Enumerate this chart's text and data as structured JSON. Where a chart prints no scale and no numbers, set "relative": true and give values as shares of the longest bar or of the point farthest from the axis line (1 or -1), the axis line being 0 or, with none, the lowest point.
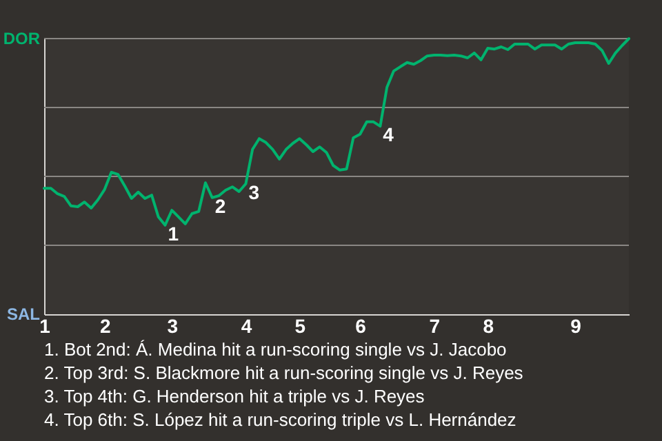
{
  "chart_data": {
    "type": "line",
    "relative": true,
    "categories": [
      "1",
      null,
      null,
      null,
      null,
      null,
      null,
      null,
      null,
      "2",
      null,
      null,
      null,
      null,
      null,
      null,
      null,
      null,
      null,
      "3",
      null,
      null,
      null,
      null,
      null,
      null,
      null,
      null,
      null,
      null,
      "4",
      null,
      null,
      null,
      null,
      null,
      null,
      null,
      "5",
      null,
      null,
      null,
      null,
      null,
      null,
      null,
      null,
      "6",
      null,
      null,
      null,
      null,
      null,
      null,
      null,
      null,
      null,
      null,
      "7",
      null,
      null,
      null,
      null,
      null,
      null,
      null,
      "8",
      null,
      null,
      null,
      null,
      null,
      null,
      null,
      null,
      null,
      null,
      null,
      null,
      "9",
      null,
      null,
      null,
      null,
      null,
      null,
      null,
      null
    ],
    "series": [
      {
        "color": "#00b36e",
        "values": [
          0.457,
          0.457,
          0.437,
          0.427,
          0.393,
          0.39,
          0.407,
          0.385,
          0.415,
          0.453,
          0.515,
          0.507,
          0.465,
          0.42,
          0.443,
          0.42,
          0.432,
          0.353,
          0.323,
          0.377,
          0.353,
          0.328,
          0.365,
          0.373,
          0.477,
          0.423,
          0.43,
          0.45,
          0.462,
          0.445,
          0.473,
          0.598,
          0.637,
          0.623,
          0.598,
          0.563,
          0.598,
          0.62,
          0.637,
          0.615,
          0.59,
          0.607,
          0.587,
          0.54,
          0.523,
          0.527,
          0.64,
          0.653,
          0.698,
          0.698,
          0.682,
          0.823,
          0.882,
          0.898,
          0.913,
          0.907,
          0.92,
          0.937,
          0.94,
          0.94,
          0.938,
          0.94,
          0.937,
          0.93,
          0.948,
          0.923,
          0.965,
          0.962,
          0.97,
          0.96,
          0.98,
          0.98,
          0.98,
          0.962,
          0.977,
          0.977,
          0.977,
          0.962,
          0.98,
          0.985,
          0.985,
          0.985,
          0.98,
          0.957,
          0.91,
          0.948,
          0.975,
          1
        ]
      }
    ],
    "ref_lines": [
      {
        "axis": "y",
        "value": 0.25
      },
      {
        "axis": "y",
        "value": 0.5
      },
      {
        "axis": "y",
        "value": 0.75
      },
      {
        "axis": "y",
        "value": 1
      }
    ],
    "annotations": [
      "DOR",
      "SAL",
      {
        "text": "1",
        "y": 0.323
      },
      {
        "text": "2",
        "y": 0.423
      },
      {
        "text": "3",
        "y": 0.473
      },
      {
        "text": "4",
        "y": 0.682
      },
      "1. Bot 2nd: Á. Medina hit a run-scoring single vs J. Jacobo",
      "2. Top 3rd: S. Blackmore hit a run-scoring single vs J. Reyes",
      "3. Top 4th: G. Henderson hit a triple vs J. Reyes",
      "4. Top 6th: S. López hit a run-scoring triple vs L. Hernández"
    ]
  }
}
